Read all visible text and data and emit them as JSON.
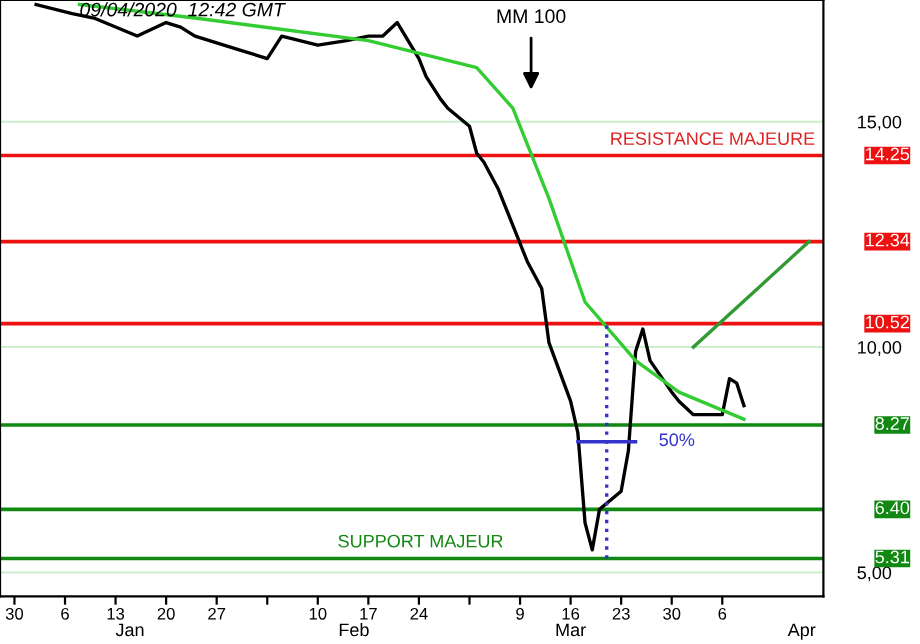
{
  "chart_data": {
    "type": "line",
    "xlim": [
      "2019-12-28",
      "2020-04-20"
    ],
    "ylim": [
      4.47,
      17.7
    ],
    "yticks": [
      {
        "value": 5,
        "label": "5,00"
      },
      {
        "value": 10,
        "label": "10,00"
      },
      {
        "value": 15,
        "label": "15,00"
      }
    ],
    "xticks": [
      {
        "value": "2019-12-30",
        "label": "30"
      },
      {
        "value": "2020-01-06",
        "label": "6"
      },
      {
        "value": "2020-01-13",
        "label": "13"
      },
      {
        "value": "2020-01-20",
        "label": "20"
      },
      {
        "value": "2020-01-27",
        "label": "27"
      },
      {
        "value": "2020-02-03",
        "label": null
      },
      {
        "value": "2020-02-10",
        "label": "10"
      },
      {
        "value": "2020-02-17",
        "label": "17"
      },
      {
        "value": "2020-02-24",
        "label": "24"
      },
      {
        "value": "2020-03-02",
        "label": null
      },
      {
        "value": "2020-03-09",
        "label": "9"
      },
      {
        "value": "2020-03-16",
        "label": "16"
      },
      {
        "value": "2020-03-23",
        "label": "23"
      },
      {
        "value": "2020-03-30",
        "label": "30"
      },
      {
        "value": "2020-04-06",
        "label": "6"
      }
    ],
    "x2lim": [
      "2019-12-28",
      "2020-04-20"
    ],
    "x2ticks": [
      {
        "value": "2020-01-15",
        "label": "Jan"
      },
      {
        "value": "2020-02-15",
        "label": "Feb"
      },
      {
        "value": "2020-03-16",
        "label": "Mar"
      },
      {
        "value": "2020-04-17",
        "label": "Apr"
      }
    ],
    "grid": "y",
    "legend": false,
    "marker": "none",
    "series": [
      {
        "color": "#000000",
        "x": [
          "2020-01-02",
          "2020-01-07",
          "2020-01-10",
          "2020-01-16",
          "2020-01-20",
          "2020-01-22",
          "2020-01-24",
          "2020-01-28",
          "2020-01-30",
          "2020-02-03",
          "2020-02-05",
          "2020-02-10",
          "2020-02-14",
          "2020-02-17",
          "2020-02-19",
          "2020-02-21",
          "2020-02-24",
          "2020-02-25",
          "2020-02-27",
          "2020-02-28",
          "2020-03-02",
          "2020-03-03",
          "2020-03-04",
          "2020-03-06",
          "2020-03-09",
          "2020-03-10",
          "2020-03-12",
          "2020-03-13",
          "2020-03-16",
          "2020-03-17",
          "2020-03-18",
          "2020-03-19",
          "2020-03-20",
          "2020-03-23",
          "2020-03-24",
          "2020-03-25",
          "2020-03-26",
          "2020-03-27",
          "2020-03-30",
          "2020-03-31",
          "2020-04-02",
          "2020-04-06",
          "2020-04-07",
          "2020-04-08",
          "2020-04-09"
        ],
        "values": [
          17.6,
          17.4,
          17.3,
          16.9,
          17.2,
          17.1,
          16.9,
          16.7,
          16.6,
          16.4,
          16.9,
          16.7,
          16.8,
          16.9,
          16.9,
          17.2,
          16.4,
          16.0,
          15.5,
          15.3,
          14.9,
          14.3,
          14.1,
          13.5,
          12.3,
          11.9,
          11.3,
          10.1,
          8.8,
          8.1,
          6.1,
          5.5,
          6.4,
          6.8,
          7.7,
          9.9,
          10.4,
          9.7,
          9.0,
          8.8,
          8.5,
          8.5,
          9.3,
          9.2,
          8.7
        ]
      },
      {
        "color": "#33cc33",
        "x": [
          "2020-01-08",
          "2020-01-24",
          "2020-02-17",
          "2020-03-03",
          "2020-03-08",
          "2020-03-13",
          "2020-03-18",
          "2020-03-25",
          "2020-03-31",
          "2020-04-09"
        ],
        "values": [
          17.6,
          17.3,
          16.8,
          16.2,
          15.3,
          13.3,
          11.0,
          9.7,
          9.0,
          8.4
        ]
      },
      {
        "color": "#339933",
        "x": [
          "2020-04-02",
          "2020-04-18"
        ],
        "values": [
          10.0,
          12.34
        ]
      },
      {
        "color": "#3333cc",
        "line_style": "dotted",
        "x": [
          "2020-03-21",
          "2020-03-21"
        ],
        "values": [
          5.31,
          10.52
        ]
      },
      {
        "color": "#3333cc",
        "x": [
          "2020-03-17",
          "2020-03-25"
        ],
        "values": [
          7.9,
          7.9
        ]
      }
    ],
    "ref_lines": [
      {
        "axis": "y",
        "value": 14.25,
        "label": "14.25",
        "color": "#ee1111"
      },
      {
        "axis": "y",
        "value": 12.34,
        "label": "12.34",
        "color": "#ee1111"
      },
      {
        "axis": "y",
        "value": 10.52,
        "label": "10.52",
        "color": "#ee1111"
      },
      {
        "axis": "y",
        "value": 8.27,
        "label": "8.27",
        "color": "#118811"
      },
      {
        "axis": "y",
        "value": 6.4,
        "label": "6.40",
        "color": "#118811"
      },
      {
        "axis": "y",
        "value": 5.31,
        "label": "5.31",
        "color": "#118811"
      }
    ],
    "annotations": [
      {
        "text": "09/04/2020  12:42 GMT",
        "x": "2020-01-08",
        "y": 17.45
      },
      "MM 100",
      "RESISTANCE MAJEURE",
      "SUPPORT MAJEUR",
      "50%"
    ]
  }
}
